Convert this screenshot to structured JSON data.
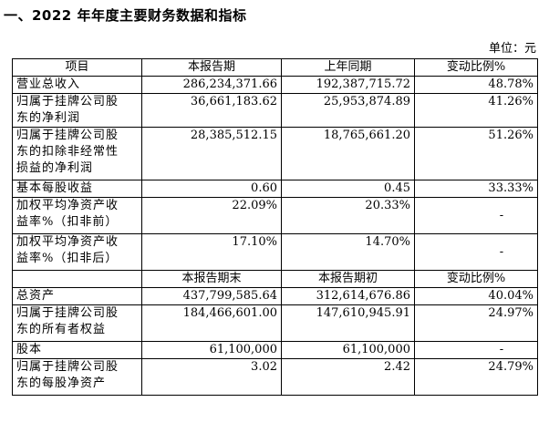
{
  "section_title": "一、2022 年年度主要财务数据和指标",
  "unit": "单位：元",
  "header1": [
    "项目",
    "本报告期",
    "上年同期",
    "变动比例%"
  ],
  "rows1": [
    {
      "label": [
        "营业总收入"
      ],
      "a": "286,234,371.66",
      "b": "192,387,715.72",
      "c": "48.78%"
    },
    {
      "label": [
        "归属于挂牌公司股",
        "东的净利润"
      ],
      "a": "36,661,183.62",
      "b": "25,953,874.89",
      "c": "41.26%"
    },
    {
      "label": [
        "归属于挂牌公司股",
        "东的扣除非经常性",
        "损益的净利润"
      ],
      "a": "28,385,512.15",
      "b": "18,765,661.20",
      "c": "51.26%"
    },
    {
      "label": [
        "基本每股收益"
      ],
      "a": "0.60",
      "b": "0.45",
      "c": "33.33%"
    },
    {
      "label": [
        "加权平均净资产收",
        "益率%（扣非前）"
      ],
      "a": "22.09%",
      "b": "20.33%",
      "c": "-"
    },
    {
      "label": [
        "加权平均净资产收",
        "益率%（扣非后）"
      ],
      "a": "17.10%",
      "b": "14.70%",
      "c": "-"
    }
  ],
  "header2": [
    "",
    "本报告期末",
    "本报告期初",
    "变动比例%"
  ],
  "rows2": [
    {
      "label": [
        "总资产"
      ],
      "a": "437,799,585.64",
      "b": "312,614,676.86",
      "c": "40.04%"
    },
    {
      "label": [
        "归属于挂牌公司股",
        "东的所有者权益"
      ],
      "a": "184,466,601.00",
      "b": "147,610,945.91",
      "c": "24.97%"
    },
    {
      "label": [
        "股本"
      ],
      "a": "61,100,000",
      "b": "61,100,000",
      "c": "-"
    },
    {
      "label": [
        "归属于挂牌公司股",
        "东的每股净资产"
      ],
      "a": "3.02",
      "b": "2.42",
      "c": "24.79%"
    }
  ]
}
